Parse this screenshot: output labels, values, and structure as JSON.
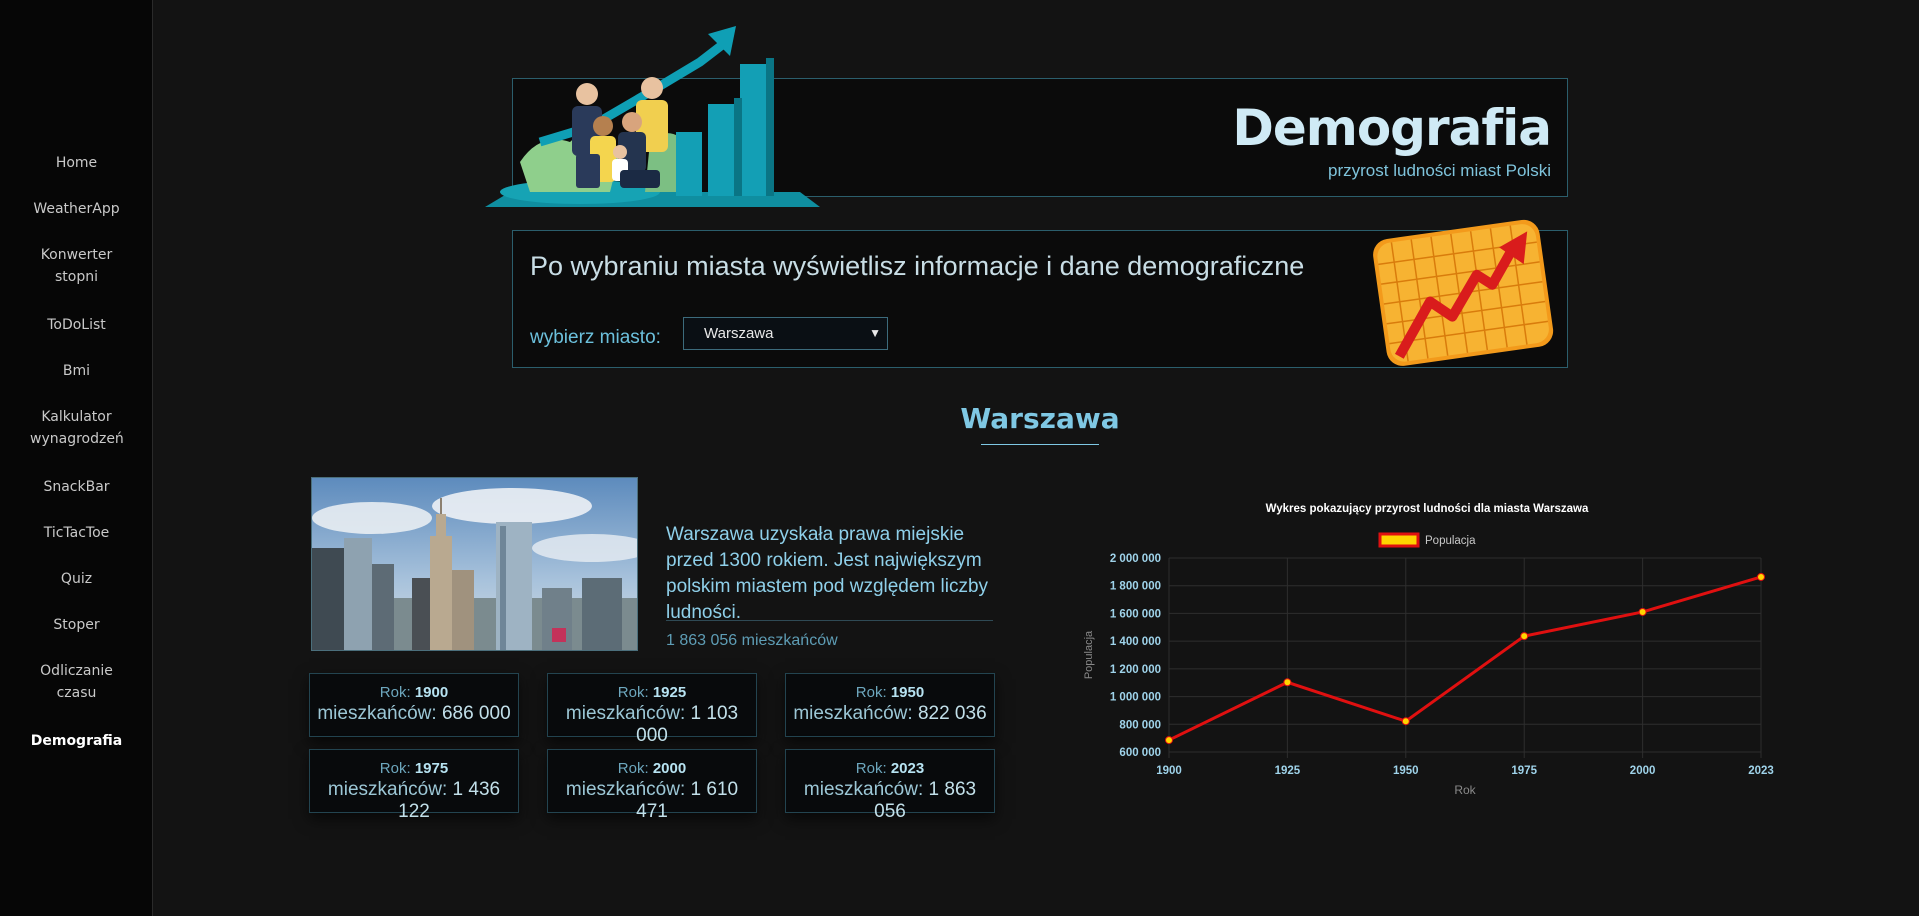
{
  "nav": {
    "items": [
      {
        "label": "Home"
      },
      {
        "label": "WeatherApp"
      },
      {
        "label": "Konwerter stopni"
      },
      {
        "label": "ToDoList"
      },
      {
        "label": "Bmi"
      },
      {
        "label": "Kalkulator wynagrodzeń"
      },
      {
        "label": "SnackBar"
      },
      {
        "label": "TicTacToe"
      },
      {
        "label": "Quiz"
      },
      {
        "label": "Stoper"
      },
      {
        "label": "Odliczanie czasu"
      },
      {
        "label": "Demografia",
        "active": true
      }
    ]
  },
  "header": {
    "title": "Demografia",
    "subtitle": "przyrost ludności miast Polski"
  },
  "selector": {
    "instruction": "Po wybraniu miasta wyświetlisz informacje i dane demograficzne",
    "label": "wybierz miasto:",
    "selected_city": "Warszawa"
  },
  "city": {
    "name": "Warszawa",
    "description": "Warszawa uzyskała prawa miejskie przed 1300 rokiem. Jest największym polskim miastem pod względem liczby ludności.",
    "population_text": "1 863 056 mieszkańców"
  },
  "cards": {
    "year_label": "Rok:",
    "residents_label": "mieszkańców:",
    "items": [
      {
        "year": "1900",
        "residents": "686 000"
      },
      {
        "year": "1925",
        "residents": "1 103 000"
      },
      {
        "year": "1950",
        "residents": "822 036"
      },
      {
        "year": "1975",
        "residents": "1 436 122"
      },
      {
        "year": "2000",
        "residents": "1 610 471"
      },
      {
        "year": "2023",
        "residents": "1 863 056"
      }
    ]
  },
  "colors": {
    "accent": "#7fc8e4",
    "line": "#e01010",
    "point": "#ffd400"
  },
  "chart_data": {
    "type": "line",
    "title": "Wykres pokazujący przyrost ludności dla miasta Warszawa",
    "xlabel": "Rok",
    "ylabel": "Populacja",
    "categories": [
      "1900",
      "1925",
      "1950",
      "1975",
      "2000",
      "2023"
    ],
    "series": [
      {
        "name": "Populacja",
        "values": [
          686000,
          1103000,
          822036,
          1436122,
          1610471,
          1863056
        ]
      }
    ],
    "ylim": [
      600000,
      2000000
    ],
    "yticks": [
      "600 000",
      "800 000",
      "1 000 000",
      "1 200 000",
      "1 400 000",
      "1 600 000",
      "1 800 000",
      "2 000 000"
    ],
    "grid": true,
    "legend": "top"
  }
}
